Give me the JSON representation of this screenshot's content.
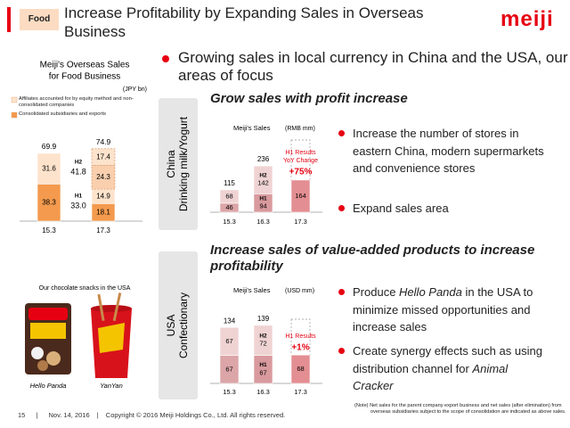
{
  "header": {
    "tag": "Food",
    "title": "Increase Profitability by Expanding Sales in Overseas Business",
    "logo": "meiji"
  },
  "lead": "Growing sales in local currency in China and the USA, our areas of focus",
  "chart_data": [
    {
      "type": "bar",
      "stacked": true,
      "title_lines": [
        "Meiji's Overseas Sales",
        "for Food Business"
      ],
      "unit": "(JPY bn)",
      "categories": [
        "15.3",
        "17.3"
      ],
      "series": [
        {
          "name": "Consolidated subsidiaries and exports",
          "color": "#f39a4e",
          "values": [
            38.3,
            18.1
          ]
        },
        {
          "name": "Affiliates accounted for by equity method and non-consolidated companies",
          "color": "#fde3cc",
          "values": [
            31.6,
            14.9
          ]
        },
        {
          "color": "#f9cfae",
          "dashed": true,
          "values": [
            null,
            24.3
          ]
        },
        {
          "color": "#fde3cc",
          "dashed": true,
          "values": [
            null,
            17.4
          ]
        }
      ],
      "totals": [
        69.9,
        74.9
      ],
      "half_totals": [
        {
          "name": "H2",
          "value": 41.8
        },
        {
          "name": "H1",
          "value": 33.0,
          "label": "33.0"
        }
      ],
      "ylim": [
        0,
        80
      ]
    },
    {
      "type": "bar",
      "stacked": true,
      "title": "Meiji's Sales",
      "unit": "(RMB mm)",
      "categories": [
        "15.3",
        "16.3",
        "17.3"
      ],
      "series": [
        {
          "colors": [
            "#dca5a8",
            "#d99a9e",
            "#e38e92"
          ],
          "values": [
            46,
            94,
            164
          ],
          "tags": [
            null,
            "H1",
            null
          ]
        },
        {
          "color": "#efd3d3",
          "values": [
            68,
            142,
            null
          ],
          "tags": [
            null,
            "H2",
            null
          ]
        }
      ],
      "totals": [
        115,
        236,
        null
      ],
      "ylim": [
        0,
        300
      ],
      "annotation": {
        "lines": [
          "H1 Results",
          "YoY Change"
        ],
        "change": "+75%"
      }
    },
    {
      "type": "bar",
      "stacked": true,
      "title": "Meiji's Sales",
      "unit": "(USD mm)",
      "categories": [
        "15.3",
        "16.3",
        "17.3"
      ],
      "series": [
        {
          "colors": [
            "#dca5a8",
            "#d99a9e",
            "#e38e92"
          ],
          "values": [
            67,
            67,
            68
          ],
          "tags": [
            null,
            "H1",
            null
          ]
        },
        {
          "color": "#efd3d3",
          "values": [
            67,
            72,
            null
          ],
          "tags": [
            null,
            "H2",
            null
          ]
        }
      ],
      "totals": [
        134,
        139,
        null
      ],
      "ylim": [
        0,
        160
      ],
      "annotation": {
        "lines": [
          "H1 Results"
        ],
        "change": "+1%"
      }
    }
  ],
  "photos": {
    "caption": "Our chocolate snacks in the USA",
    "items": [
      "Hello Panda",
      "YanYan"
    ]
  },
  "sections": [
    {
      "side_label": [
        "China",
        "Drinking milk/Yogurt"
      ],
      "heading": "Grow sales with profit increase",
      "bullets": [
        [
          {
            "text": "Increase the number of stores in eastern China, modern supermarkets and convenience stores"
          }
        ],
        [
          {
            "text": "Expand sales area"
          }
        ]
      ]
    },
    {
      "side_label": [
        "USA",
        "Confectionary"
      ],
      "heading": "Increase sales of value-added products to increase profitability",
      "bullets": [
        [
          {
            "text": "Produce "
          },
          {
            "text": "Hello Panda",
            "italic": true
          },
          {
            "text": " in the USA to minimize missed opportunities and increase sales"
          }
        ],
        [
          {
            "text": "Create synergy effects such as using distribution channel for "
          },
          {
            "text": "Animal Cracker",
            "italic": true
          }
        ]
      ]
    }
  ],
  "note": "(Note) Net sales for the parent company export business and net sales (after elimination) from overseas subsidiaries subject to the scope of consolidation are indicated as above sales.",
  "footer": {
    "page": "15",
    "date": "Nov. 14, 2016",
    "copyright": "Copyright © 2016 Meiji Holdings Co., Ltd. All rights reserved."
  }
}
